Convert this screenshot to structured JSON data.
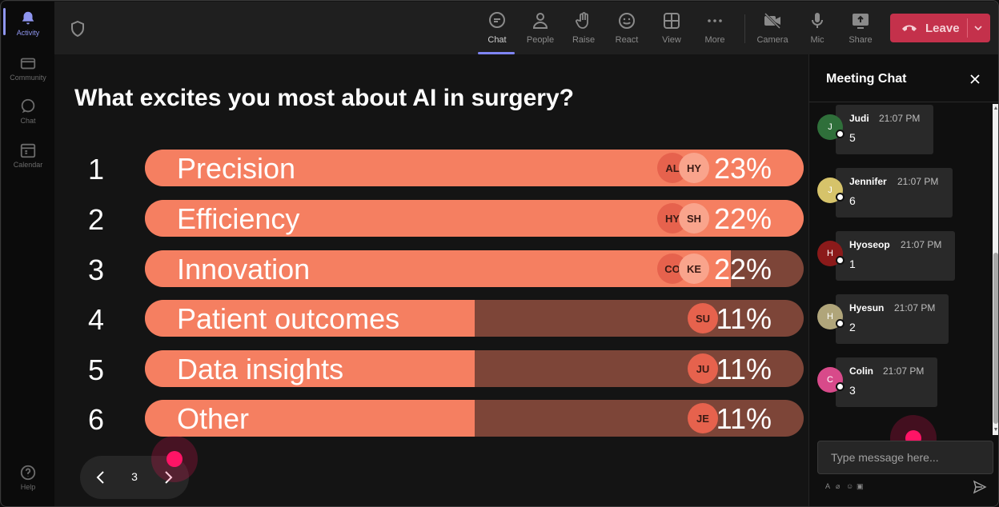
{
  "rail": {
    "items": [
      {
        "label": "Activity",
        "icon": "bell-icon",
        "active": true
      },
      {
        "label": "Community",
        "icon": "community-icon"
      },
      {
        "label": "Chat",
        "icon": "chat-icon"
      },
      {
        "label": "Calendar",
        "icon": "calendar-icon"
      }
    ],
    "help_label": "Help"
  },
  "toolbar": {
    "chat": "Chat",
    "people": "People",
    "raise": "Raise",
    "react": "React",
    "view": "View",
    "more": "More",
    "camera": "Camera",
    "mic": "Mic",
    "share": "Share",
    "leave": "Leave",
    "leave_color": "#c4314b",
    "accent": "#7f85f5"
  },
  "poll": {
    "question": "What excites you most about AI in surgery?",
    "colors": {
      "fill": "#f57f61",
      "track": "#7d4538"
    },
    "options": [
      {
        "rank": "1",
        "label": "Precision",
        "percent": "23%",
        "share": 0.23,
        "fill_fraction": 1.0,
        "avatars": [
          "AL",
          "HY"
        ]
      },
      {
        "rank": "2",
        "label": "Efficiency",
        "percent": "22%",
        "share": 0.22,
        "fill_fraction": 1.0,
        "avatars": [
          "HY",
          "SH"
        ]
      },
      {
        "rank": "3",
        "label": "Innovation",
        "percent": "22%",
        "share": 0.22,
        "fill_fraction": 0.89,
        "avatars": [
          "CO",
          "KE"
        ]
      },
      {
        "rank": "4",
        "label": "Patient outcomes",
        "percent": "11%",
        "share": 0.11,
        "fill_fraction": 0.5,
        "avatars": [
          "SU"
        ]
      },
      {
        "rank": "5",
        "label": "Data insights",
        "percent": "11%",
        "share": 0.11,
        "fill_fraction": 0.5,
        "avatars": [
          "JU"
        ]
      },
      {
        "rank": "6",
        "label": "Other",
        "percent": "11%",
        "share": 0.11,
        "fill_fraction": 0.5,
        "avatars": [
          "JE"
        ]
      }
    ],
    "page": "3"
  },
  "chat": {
    "title": "Meeting Chat",
    "placeholder": "Type message here...",
    "messages": [
      {
        "initial": "J",
        "name": "Judi",
        "time": "21:07 PM",
        "text": "5",
        "color": "#2f6f3a"
      },
      {
        "initial": "J",
        "name": "Jennifer",
        "time": "21:07 PM",
        "text": "6",
        "color": "#d6c36a"
      },
      {
        "initial": "H",
        "name": "Hyoseop",
        "time": "21:07 PM",
        "text": "1",
        "color": "#8b1a1a"
      },
      {
        "initial": "H",
        "name": "Hyesun",
        "time": "21:07 PM",
        "text": "2",
        "color": "#b0a57a"
      },
      {
        "initial": "C",
        "name": "Colin",
        "time": "21:07 PM",
        "text": "3",
        "color": "#d84a8a"
      }
    ]
  }
}
